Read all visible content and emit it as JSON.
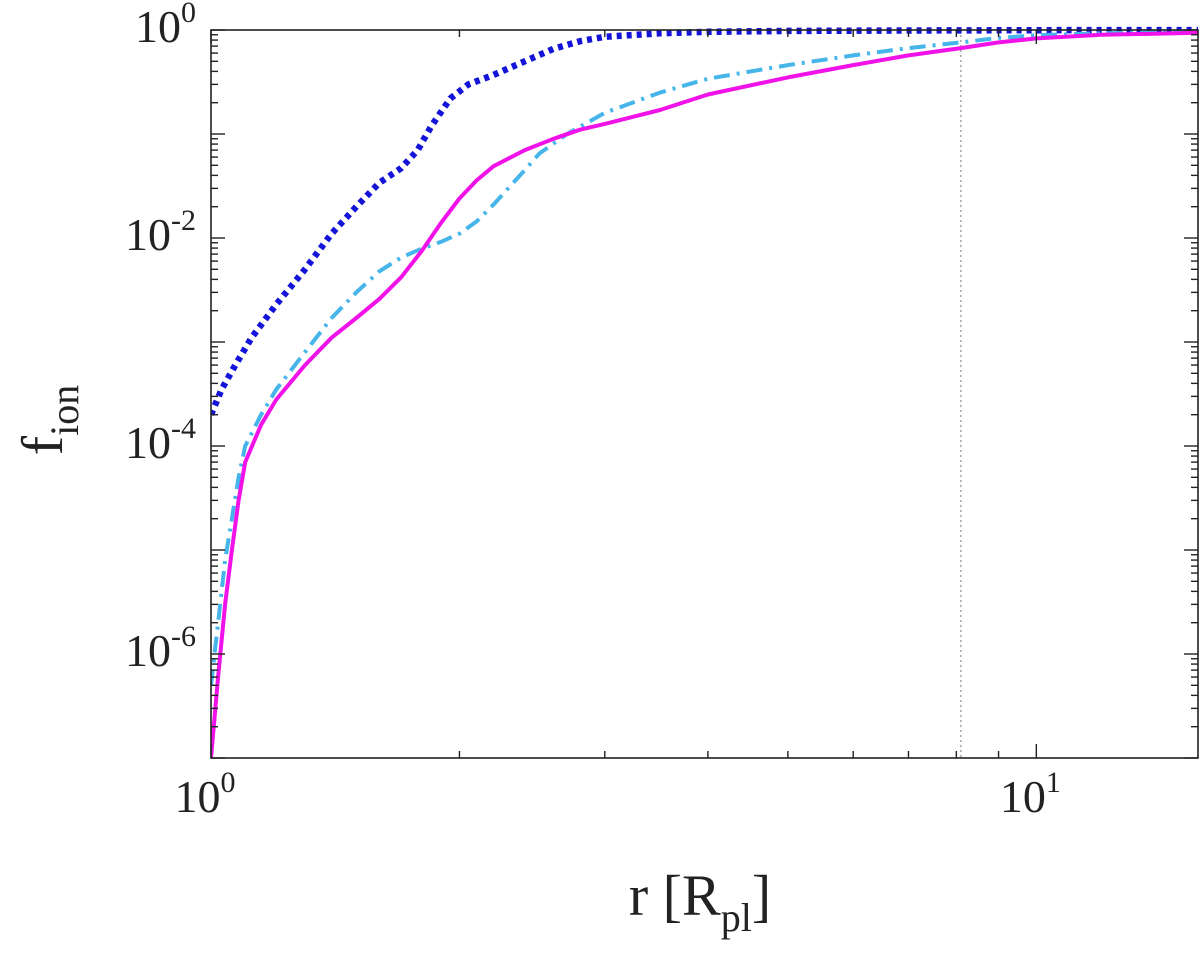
{
  "chart_data": {
    "type": "line",
    "title": "",
    "xlabel": {
      "main": "r [R",
      "sub": "pl",
      "close": "]"
    },
    "ylabel": {
      "main": "f",
      "sub": "ion"
    },
    "x_scale": "log",
    "y_scale": "log",
    "xlim": [
      1,
      15.7
    ],
    "ylim": [
      1e-07,
      1
    ],
    "x_ticks": [
      {
        "value": 1,
        "base": "10",
        "exp": "0"
      },
      {
        "value": 10,
        "base": "10",
        "exp": "1"
      }
    ],
    "y_ticks": [
      {
        "value": 1,
        "base": "10",
        "exp": "0"
      },
      {
        "value": 0.01,
        "base": "10",
        "exp": "-2"
      },
      {
        "value": 0.0001,
        "base": "10",
        "exp": "-4"
      },
      {
        "value": 1e-06,
        "base": "10",
        "exp": "-6"
      }
    ],
    "grid": false,
    "legend": "none",
    "vline": {
      "x": 8.1,
      "color": "#aaaaaa",
      "style": "dotted"
    },
    "series": [
      {
        "color": "#1414d8",
        "style": "dotted",
        "points": [
          [
            1.0,
            0.0002
          ],
          [
            1.03,
            0.00035
          ],
          [
            1.07,
            0.0006
          ],
          [
            1.12,
            0.0011
          ],
          [
            1.2,
            0.0023
          ],
          [
            1.3,
            0.005
          ],
          [
            1.4,
            0.011
          ],
          [
            1.5,
            0.02
          ],
          [
            1.6,
            0.034
          ],
          [
            1.7,
            0.047
          ],
          [
            1.78,
            0.07
          ],
          [
            1.85,
            0.12
          ],
          [
            1.95,
            0.22
          ],
          [
            2.05,
            0.3
          ],
          [
            2.2,
            0.37
          ],
          [
            2.4,
            0.5
          ],
          [
            2.6,
            0.66
          ],
          [
            2.8,
            0.78
          ],
          [
            3.0,
            0.86
          ],
          [
            3.5,
            0.93
          ],
          [
            4.0,
            0.96
          ],
          [
            5.0,
            0.98
          ],
          [
            7.0,
            0.99
          ],
          [
            10.0,
            0.995
          ],
          [
            15.7,
            0.997
          ]
        ]
      },
      {
        "color": "#45b5ea",
        "style": "dashdot",
        "points": [
          [
            1.0,
            5e-07
          ],
          [
            1.02,
            2e-06
          ],
          [
            1.04,
            8e-06
          ],
          [
            1.06,
            2e-05
          ],
          [
            1.08,
            5e-05
          ],
          [
            1.1,
            0.0001
          ],
          [
            1.15,
            0.0002
          ],
          [
            1.2,
            0.00035
          ],
          [
            1.3,
            0.0008
          ],
          [
            1.4,
            0.0017
          ],
          [
            1.5,
            0.003
          ],
          [
            1.6,
            0.0048
          ],
          [
            1.7,
            0.0065
          ],
          [
            1.8,
            0.0079
          ],
          [
            1.9,
            0.0092
          ],
          [
            2.0,
            0.011
          ],
          [
            2.1,
            0.0145
          ],
          [
            2.2,
            0.021
          ],
          [
            2.3,
            0.031
          ],
          [
            2.4,
            0.045
          ],
          [
            2.5,
            0.065
          ],
          [
            2.7,
            0.1
          ],
          [
            3.0,
            0.16
          ],
          [
            3.5,
            0.25
          ],
          [
            4.0,
            0.34
          ],
          [
            5.0,
            0.46
          ],
          [
            6.0,
            0.57
          ],
          [
            7.0,
            0.67
          ],
          [
            8.1,
            0.76
          ],
          [
            9.0,
            0.84
          ],
          [
            10.0,
            0.89
          ],
          [
            12.0,
            0.93
          ],
          [
            15.7,
            0.96
          ]
        ]
      },
      {
        "color": "#f012e8",
        "style": "solid",
        "points": [
          [
            1.0,
            1e-07
          ],
          [
            1.02,
            6e-07
          ],
          [
            1.04,
            3e-06
          ],
          [
            1.06,
            1e-05
          ],
          [
            1.08,
            3e-05
          ],
          [
            1.1,
            7e-05
          ],
          [
            1.15,
            0.00016
          ],
          [
            1.2,
            0.00028
          ],
          [
            1.3,
            0.0006
          ],
          [
            1.4,
            0.0011
          ],
          [
            1.5,
            0.0017
          ],
          [
            1.6,
            0.0026
          ],
          [
            1.7,
            0.0042
          ],
          [
            1.8,
            0.0075
          ],
          [
            1.9,
            0.014
          ],
          [
            2.0,
            0.024
          ],
          [
            2.1,
            0.036
          ],
          [
            2.2,
            0.049
          ],
          [
            2.4,
            0.07
          ],
          [
            2.6,
            0.09
          ],
          [
            2.8,
            0.11
          ],
          [
            3.0,
            0.125
          ],
          [
            3.5,
            0.17
          ],
          [
            4.0,
            0.24
          ],
          [
            5.0,
            0.35
          ],
          [
            6.0,
            0.46
          ],
          [
            7.0,
            0.57
          ],
          [
            8.1,
            0.67
          ],
          [
            9.0,
            0.76
          ],
          [
            10.0,
            0.83
          ],
          [
            12.0,
            0.9
          ],
          [
            15.7,
            0.94
          ]
        ]
      }
    ]
  }
}
